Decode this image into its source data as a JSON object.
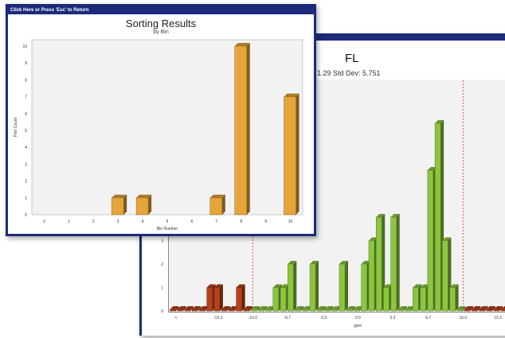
{
  "chart_data": [
    {
      "type": "bar",
      "title": "FL",
      "subtitle": "1.29  Std Dev: 5.751",
      "xlabel": "ppm",
      "x_ticks": [
        "<",
        "-13.3",
        "-10.0",
        "-6.7",
        "-3.3",
        "0.0",
        "3.3",
        "6.7",
        "10.0",
        "13.3"
      ],
      "y_ticks": [
        "0",
        "1",
        "2",
        "3"
      ],
      "ylim": [
        0,
        10
      ],
      "limit_lines": [
        -10.0,
        10.0
      ],
      "colors": {
        "out_of_spec": "#b8411c",
        "in_spec": "#8cc63f"
      },
      "categories": [
        "-17.6",
        "-16.9",
        "-16.2",
        "-15.5",
        "-14.8",
        "-14.1",
        "-13.4",
        "-12.7",
        "-12.0",
        "-11.3",
        "-10.6",
        "-9.9",
        "-9.2",
        "-8.5",
        "-7.8",
        "-7.1",
        "-6.4",
        "-5.7",
        "-5.0",
        "-4.3",
        "-3.6",
        "-2.9",
        "-2.2",
        "-1.5",
        "-0.8",
        "-0.1",
        "0.6",
        "1.3",
        "2.0",
        "2.7",
        "3.4",
        "4.1",
        "4.8",
        "5.5",
        "6.2",
        "6.9",
        "7.6",
        "8.3",
        "9.0",
        "9.7",
        "10.4",
        "11.1",
        "11.8",
        "12.5",
        "13.2",
        "13.9",
        "14.6"
      ],
      "values": [
        0,
        0,
        0,
        0,
        0,
        1,
        1,
        0,
        0,
        1,
        0,
        0,
        0,
        0,
        1,
        1,
        2,
        0,
        0,
        2,
        0,
        0,
        0,
        2,
        0,
        0,
        2,
        3,
        4,
        1,
        4,
        0,
        0,
        1,
        1,
        6,
        8,
        3,
        1,
        0,
        0,
        0,
        0,
        0,
        0,
        0,
        0
      ]
    },
    {
      "type": "bar",
      "window_title": "Click Here or Press 'Esc' to Return",
      "title": "Sorting Results",
      "subtitle": "by Bin",
      "xlabel": "Bin Number",
      "ylabel": "Part Count",
      "categories": [
        "0",
        "1",
        "2",
        "3",
        "4",
        "5",
        "6",
        "7",
        "8",
        "9",
        "10"
      ],
      "values": [
        0,
        0,
        0,
        1,
        1,
        0,
        0,
        1,
        10,
        0,
        7
      ],
      "y_ticks": [
        "0",
        "1",
        "2",
        "3",
        "4",
        "5",
        "6",
        "7",
        "8",
        "9",
        "10"
      ],
      "ylim": [
        0,
        10
      ],
      "bar_color": "#e5a53a"
    }
  ]
}
